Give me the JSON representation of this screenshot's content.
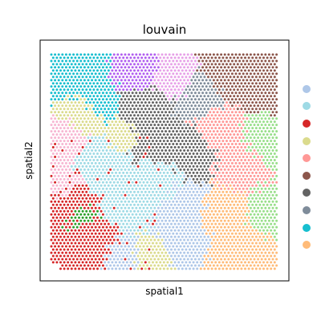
{
  "chart_data": {
    "type": "scatter",
    "title": "louvain",
    "xlabel": "spatial1",
    "ylabel": "spatial2",
    "grid": false,
    "legend_position": "right",
    "x_ticks_visible": false,
    "y_ticks_visible": false,
    "series_colors": [
      "#aec7e8",
      "#9edae5",
      "#d62728",
      "#dbdb8d",
      "#ff9896",
      "#8c564b",
      "#636363",
      "#7f8c9a",
      "#17becf",
      "#ffbb78"
    ]
  }
}
